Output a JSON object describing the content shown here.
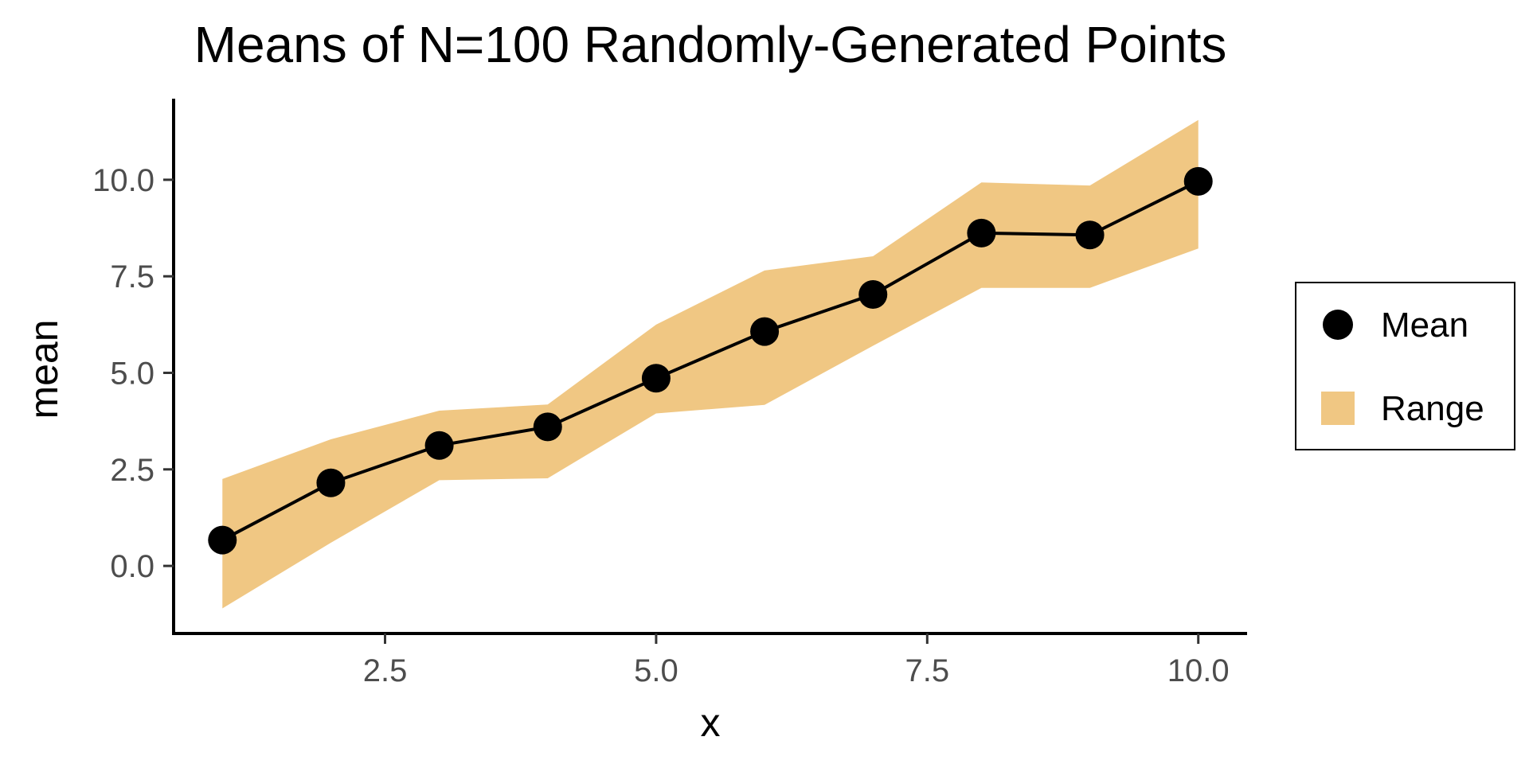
{
  "chart_data": {
    "type": "line",
    "title": "Means of N=100 Randomly-Generated Points",
    "xlabel": "x",
    "ylabel": "mean",
    "xlim": [
      0.55,
      10.45
    ],
    "ylim": [
      -1.75,
      12.1
    ],
    "x_ticks": [
      2.5,
      5.0,
      7.5,
      10.0
    ],
    "x_tick_labels": [
      "2.5",
      "5.0",
      "7.5",
      "10.0"
    ],
    "y_ticks": [
      0.0,
      2.5,
      5.0,
      7.5,
      10.0
    ],
    "y_tick_labels": [
      "0.0",
      "2.5",
      "5.0",
      "7.5",
      "10.0"
    ],
    "grid": false,
    "legend_position": "right",
    "x": [
      1,
      2,
      3,
      4,
      5,
      6,
      7,
      8,
      9,
      10
    ],
    "series": [
      {
        "name": "Mean",
        "kind": "line-with-points",
        "color": "#000000",
        "values": [
          0.67,
          2.15,
          3.12,
          3.6,
          4.86,
          6.07,
          7.03,
          8.62,
          8.57,
          9.96
        ]
      },
      {
        "name": "Range",
        "kind": "ribbon",
        "color": "#f0c783",
        "lower": [
          -1.1,
          0.6,
          2.22,
          2.27,
          3.95,
          4.17,
          5.7,
          7.2,
          7.2,
          8.22
        ],
        "upper": [
          2.25,
          3.28,
          4.02,
          4.18,
          6.25,
          7.65,
          8.02,
          9.93,
          9.85,
          11.55
        ]
      }
    ]
  }
}
